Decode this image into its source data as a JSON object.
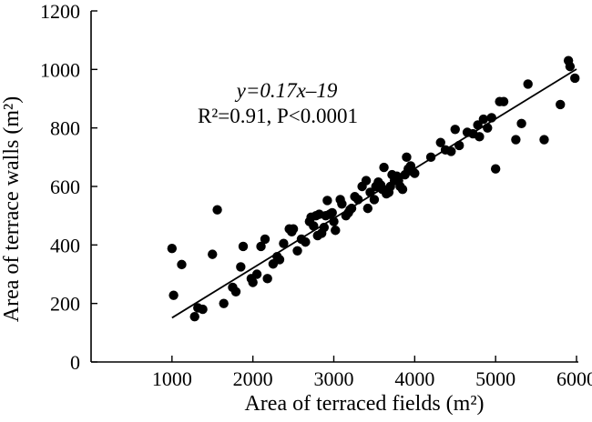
{
  "chart_data": {
    "type": "scatter",
    "title": "",
    "xlabel": "Area of terraced fields (m²)",
    "ylabel": "Area of terrace walls (m²)",
    "xlim": [
      0,
      6000
    ],
    "ylim": [
      0,
      1200
    ],
    "x_ticks": [
      1000,
      2000,
      3000,
      4000,
      5000,
      6000
    ],
    "y_ticks": [
      0,
      200,
      400,
      600,
      800,
      1000,
      1200
    ],
    "grid": false,
    "legend": "none",
    "marker_color": "#000000",
    "annotation": {
      "equation": "y=0.17x–19",
      "stats": "R²=0.91, P<0.0001"
    },
    "fit_line": {
      "slope": 0.17,
      "intercept": -19,
      "x_range": [
        1000,
        6000
      ]
    },
    "points": {
      "x": [
        1000,
        1020,
        1120,
        1280,
        1320,
        1380,
        1500,
        1560,
        1640,
        1750,
        1790,
        1850,
        1880,
        1980,
        2000,
        2050,
        2100,
        2150,
        2180,
        2250,
        2300,
        2330,
        2380,
        2450,
        2480,
        2500,
        2550,
        2600,
        2650,
        2700,
        2720,
        2750,
        2780,
        2800,
        2820,
        2850,
        2880,
        2900,
        2920,
        2950,
        2980,
        3000,
        3020,
        3080,
        3100,
        3150,
        3180,
        3200,
        3220,
        3260,
        3300,
        3350,
        3400,
        3420,
        3450,
        3500,
        3520,
        3550,
        3580,
        3600,
        3620,
        3650,
        3680,
        3700,
        3720,
        3750,
        3780,
        3800,
        3820,
        3850,
        3880,
        3900,
        3920,
        3950,
        3980,
        4000,
        4200,
        4320,
        4380,
        4450,
        4500,
        4550,
        4650,
        4720,
        4780,
        4800,
        4850,
        4900,
        4950,
        5000,
        5050,
        5100,
        5250,
        5320,
        5400,
        5600,
        5800,
        5900,
        5920,
        5980
      ],
      "y": [
        388,
        228,
        333,
        155,
        185,
        180,
        368,
        520,
        200,
        255,
        240,
        325,
        395,
        285,
        272,
        300,
        395,
        420,
        285,
        335,
        360,
        350,
        405,
        455,
        445,
        455,
        380,
        420,
        410,
        480,
        495,
        465,
        500,
        432,
        505,
        440,
        460,
        500,
        552,
        505,
        510,
        480,
        450,
        555,
        540,
        500,
        510,
        520,
        525,
        565,
        555,
        600,
        620,
        525,
        580,
        555,
        600,
        615,
        605,
        590,
        665,
        575,
        580,
        600,
        640,
        620,
        635,
        620,
        600,
        590,
        640,
        700,
        660,
        670,
        650,
        645,
        700,
        750,
        725,
        720,
        795,
        740,
        785,
        780,
        810,
        770,
        830,
        800,
        835,
        660,
        890,
        890,
        760,
        815,
        950,
        760,
        880,
        1030,
        1010,
        970
      ]
    }
  }
}
